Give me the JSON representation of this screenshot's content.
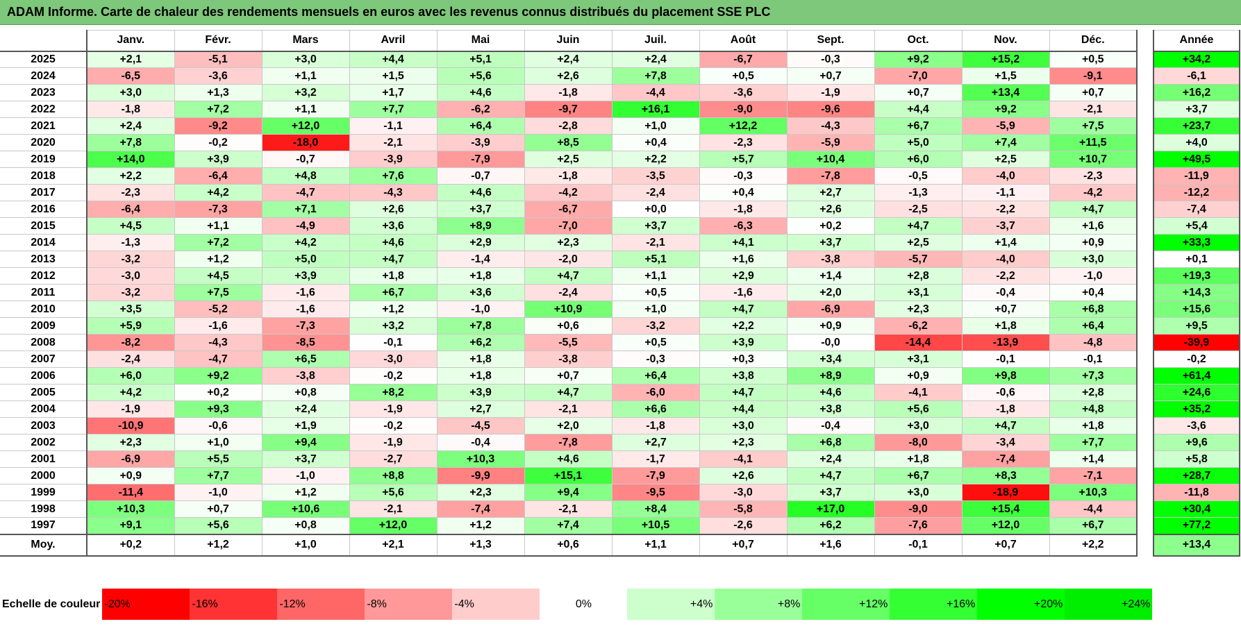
{
  "title": "ADAM Informe. Carte de chaleur des rendements mensuels en euros avec les revenus connus distribués du placement SSE PLC",
  "chart_data": {
    "type": "heatmap",
    "title": "ADAM Informe. Carte de chaleur des rendements mensuels en euros avec les revenus connus distribués du placement SSE PLC",
    "months": [
      "Janv.",
      "Févr.",
      "Mars",
      "Avril",
      "Mai",
      "Juin",
      "Juil.",
      "Août",
      "Sept.",
      "Oct.",
      "Nov.",
      "Déc."
    ],
    "annual_label": "Année",
    "average_label": "Moy.",
    "rows": [
      {
        "year": "2025",
        "values": [
          "+2,1",
          "-5,1",
          "+3,0",
          "+4,4",
          "+5,1",
          "+2,4",
          "+2,4",
          "-6,7",
          "-0,3",
          "+9,2",
          "+15,2",
          "+0,5"
        ],
        "annual": "+34,2"
      },
      {
        "year": "2024",
        "values": [
          "-6,5",
          "-3,6",
          "+1,1",
          "+1,5",
          "+5,6",
          "+2,6",
          "+7,8",
          "+0,5",
          "+0,7",
          "-7,0",
          "+1,5",
          "-9,1"
        ],
        "annual": "-6,1"
      },
      {
        "year": "2023",
        "values": [
          "+3,0",
          "+1,3",
          "+3,2",
          "+1,7",
          "+4,6",
          "-1,8",
          "-4,4",
          "-3,6",
          "-1,9",
          "+0,7",
          "+13,4",
          "+0,7"
        ],
        "annual": "+16,2"
      },
      {
        "year": "2022",
        "values": [
          "-1,8",
          "+7,2",
          "+1,1",
          "+7,7",
          "-6,2",
          "-9,7",
          "+16,1",
          "-9,0",
          "-9,6",
          "+4,4",
          "+9,2",
          "-2,1"
        ],
        "annual": "+3,7"
      },
      {
        "year": "2021",
        "values": [
          "+2,4",
          "-9,2",
          "+12,0",
          "-1,1",
          "+6,4",
          "-2,8",
          "+1,0",
          "+12,2",
          "-4,3",
          "+6,7",
          "-5,9",
          "+7,5"
        ],
        "annual": "+23,7"
      },
      {
        "year": "2020",
        "values": [
          "+7,8",
          "-0,2",
          "-18,0",
          "-2,1",
          "-3,9",
          "+8,5",
          "+0,4",
          "-2,3",
          "-5,9",
          "+5,0",
          "+7,4",
          "+11,5"
        ],
        "annual": "+4,0"
      },
      {
        "year": "2019",
        "values": [
          "+14,0",
          "+3,9",
          "-0,7",
          "-3,9",
          "-7,9",
          "+2,5",
          "+2,2",
          "+5,7",
          "+10,4",
          "+6,0",
          "+2,5",
          "+10,7"
        ],
        "annual": "+49,5"
      },
      {
        "year": "2018",
        "values": [
          "+2,2",
          "-6,4",
          "+4,8",
          "+7,6",
          "-0,7",
          "-1,8",
          "-3,5",
          "-0,3",
          "-7,8",
          "-0,5",
          "-4,0",
          "-2,3"
        ],
        "annual": "-11,9"
      },
      {
        "year": "2017",
        "values": [
          "-2,3",
          "+4,2",
          "-4,7",
          "-4,3",
          "+4,6",
          "-4,2",
          "-2,4",
          "+0,4",
          "+2,7",
          "-1,3",
          "-1,1",
          "-4,2"
        ],
        "annual": "-12,2"
      },
      {
        "year": "2016",
        "values": [
          "-6,4",
          "-7,3",
          "+7,1",
          "+2,6",
          "+3,7",
          "-6,7",
          "+0,0",
          "-1,8",
          "+2,6",
          "-2,5",
          "-2,2",
          "+4,7"
        ],
        "annual": "-7,4"
      },
      {
        "year": "2015",
        "values": [
          "+4,5",
          "+1,1",
          "-4,9",
          "+3,6",
          "+8,9",
          "-7,0",
          "+3,7",
          "-6,3",
          "+0,2",
          "+4,7",
          "-3,7",
          "+1,6"
        ],
        "annual": "+5,4"
      },
      {
        "year": "2014",
        "values": [
          "-1,3",
          "+7,2",
          "+4,2",
          "+4,6",
          "+2,9",
          "+2,3",
          "-2,1",
          "+4,1",
          "+3,7",
          "+2,5",
          "+1,4",
          "+0,9"
        ],
        "annual": "+33,3"
      },
      {
        "year": "2013",
        "values": [
          "-3,2",
          "+1,2",
          "+5,0",
          "+4,7",
          "-1,4",
          "-2,0",
          "+5,1",
          "+1,6",
          "-3,8",
          "-5,7",
          "-4,0",
          "+3,0"
        ],
        "annual": "+0,1"
      },
      {
        "year": "2012",
        "values": [
          "-3,0",
          "+4,5",
          "+3,9",
          "+1,8",
          "+1,8",
          "+4,7",
          "+1,1",
          "+2,9",
          "+1,4",
          "+2,8",
          "-2,2",
          "-1,0"
        ],
        "annual": "+19,3"
      },
      {
        "year": "2011",
        "values": [
          "-3,2",
          "+7,5",
          "-1,6",
          "+6,7",
          "+3,6",
          "-2,4",
          "+0,5",
          "-1,6",
          "+2,0",
          "+3,1",
          "-0,4",
          "+0,4"
        ],
        "annual": "+14,3"
      },
      {
        "year": "2010",
        "values": [
          "+3,5",
          "-5,2",
          "-1,6",
          "+1,2",
          "-1,0",
          "+10,9",
          "+1,0",
          "+4,7",
          "-6,9",
          "+2,3",
          "+0,7",
          "+6,8"
        ],
        "annual": "+15,6"
      },
      {
        "year": "2009",
        "values": [
          "+5,9",
          "-1,6",
          "-7,3",
          "+3,2",
          "+7,8",
          "+0,6",
          "-3,2",
          "+2,2",
          "+0,9",
          "-6,2",
          "+1,8",
          "+6,4"
        ],
        "annual": "+9,5"
      },
      {
        "year": "2008",
        "values": [
          "-8,2",
          "-4,3",
          "-8,5",
          "-0,1",
          "+6,2",
          "-5,5",
          "+0,5",
          "+3,9",
          "-0,0",
          "-14,4",
          "-13,9",
          "-4,8"
        ],
        "annual": "-39,9"
      },
      {
        "year": "2007",
        "values": [
          "-2,4",
          "-4,7",
          "+6,5",
          "-3,0",
          "+1,8",
          "-3,8",
          "-0,3",
          "+0,3",
          "+3,4",
          "+3,1",
          "-0,1",
          "-0,1"
        ],
        "annual": "-0,2"
      },
      {
        "year": "2006",
        "values": [
          "+6,0",
          "+9,2",
          "-3,8",
          "-0,2",
          "+1,8",
          "+0,7",
          "+6,4",
          "+3,8",
          "+8,9",
          "+0,9",
          "+9,8",
          "+7,3"
        ],
        "annual": "+61,4"
      },
      {
        "year": "2005",
        "values": [
          "+4,2",
          "+0,2",
          "+0,8",
          "+8,2",
          "+3,9",
          "+4,7",
          "-6,0",
          "+4,7",
          "+4,6",
          "-4,1",
          "-0,6",
          "+2,8"
        ],
        "annual": "+24,6"
      },
      {
        "year": "2004",
        "values": [
          "-1,9",
          "+9,3",
          "+2,4",
          "-1,9",
          "+2,7",
          "-2,1",
          "+6,6",
          "+4,4",
          "+3,8",
          "+5,6",
          "-1,8",
          "+4,8"
        ],
        "annual": "+35,2"
      },
      {
        "year": "2003",
        "values": [
          "-10,9",
          "-0,6",
          "+1,9",
          "-0,2",
          "-4,5",
          "+2,0",
          "-1,8",
          "+3,0",
          "-0,4",
          "+3,0",
          "+4,7",
          "+1,8"
        ],
        "annual": "-3,6"
      },
      {
        "year": "2002",
        "values": [
          "+2,3",
          "+1,0",
          "+9,4",
          "-1,9",
          "-0,4",
          "-7,8",
          "+2,7",
          "+2,3",
          "+6,8",
          "-8,0",
          "-3,4",
          "+7,7"
        ],
        "annual": "+9,6"
      },
      {
        "year": "2001",
        "values": [
          "-6,9",
          "+5,5",
          "+3,7",
          "-2,7",
          "+10,3",
          "+4,6",
          "-1,7",
          "-4,1",
          "+2,4",
          "+1,8",
          "-7,4",
          "+1,4"
        ],
        "annual": "+5,8"
      },
      {
        "year": "2000",
        "values": [
          "+0,9",
          "+7,7",
          "-1,0",
          "+8,8",
          "-9,9",
          "+15,1",
          "-7,9",
          "+2,6",
          "+4,7",
          "+6,7",
          "+8,3",
          "-7,1"
        ],
        "annual": "+28,7"
      },
      {
        "year": "1999",
        "values": [
          "-11,4",
          "-1,0",
          "+1,2",
          "+5,6",
          "+2,3",
          "+9,4",
          "-9,5",
          "-3,0",
          "+3,7",
          "+3,0",
          "-18,9",
          "+10,3"
        ],
        "annual": "-11,8"
      },
      {
        "year": "1998",
        "values": [
          "+10,3",
          "+0,7",
          "+10,6",
          "-2,1",
          "-7,4",
          "-2,1",
          "+8,4",
          "-5,8",
          "+17,0",
          "-9,0",
          "+15,4",
          "-4,4"
        ],
        "annual": "+30,4"
      },
      {
        "year": "1997",
        "values": [
          "+9,1",
          "+5,6",
          "+0,8",
          "+12,0",
          "+1,2",
          "+7,4",
          "+10,5",
          "-2,6",
          "+6,2",
          "-7,6",
          "+12,0",
          "+6,7"
        ],
        "annual": "+77,2"
      }
    ],
    "average": {
      "values": [
        "+0,2",
        "+1,2",
        "+1,0",
        "+2,1",
        "+1,3",
        "+0,6",
        "+1,1",
        "+0,7",
        "+1,6",
        "-0,1",
        "+0,7",
        "+2,2"
      ],
      "annual": "+13,4"
    },
    "color_scale": {
      "label": "Echelle de couleur",
      "stops": [
        {
          "text": "-20%",
          "color": "#ff0000",
          "align": "left"
        },
        {
          "text": "-16%",
          "color": "#ff3333",
          "align": "left"
        },
        {
          "text": "-12%",
          "color": "#ff6666",
          "align": "left"
        },
        {
          "text": "-8%",
          "color": "#ff9999",
          "align": "left"
        },
        {
          "text": "-4%",
          "color": "#ffcccc",
          "align": "left"
        },
        {
          "text": "0%",
          "color": "#ffffff",
          "align": "center"
        },
        {
          "text": "+4%",
          "color": "#ccffcc",
          "align": "right"
        },
        {
          "text": "+8%",
          "color": "#99ff99",
          "align": "right"
        },
        {
          "text": "+12%",
          "color": "#66ff66",
          "align": "right"
        },
        {
          "text": "+16%",
          "color": "#33ff33",
          "align": "right"
        },
        {
          "text": "+20%",
          "color": "#00ff00",
          "align": "right"
        },
        {
          "text": "+24%",
          "color": "#00ee00",
          "align": "right"
        }
      ]
    }
  }
}
